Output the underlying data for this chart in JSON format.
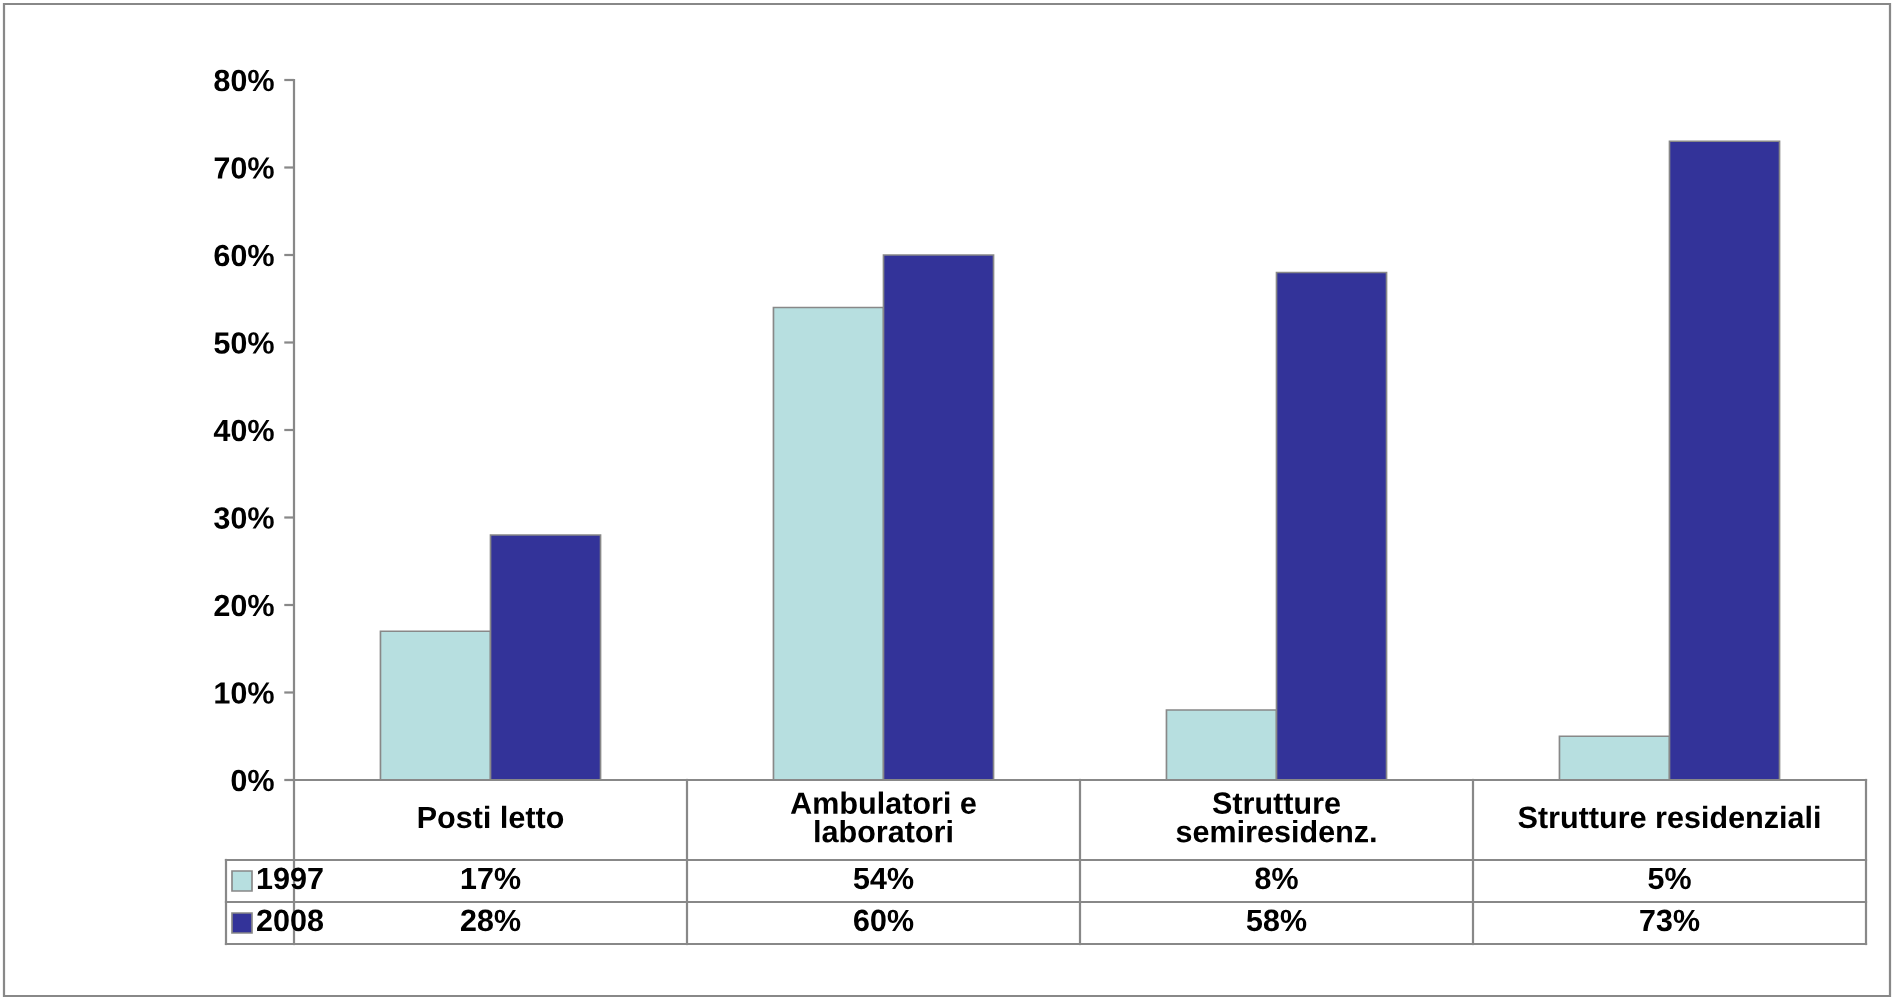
{
  "chart_data": {
    "type": "bar",
    "categories": [
      "Posti letto",
      "Ambulatori e\nlaboratori",
      "Strutture\nsemiresidenz.",
      "Strutture residenziali"
    ],
    "series": [
      {
        "name": "1997",
        "color": "#b7dfe0",
        "values": [
          17,
          54,
          8,
          5
        ],
        "value_labels": [
          "17%",
          "54%",
          "8%",
          "5%"
        ]
      },
      {
        "name": "2008",
        "color": "#333399",
        "values": [
          28,
          60,
          58,
          73
        ],
        "value_labels": [
          "28%",
          "60%",
          "58%",
          "73%"
        ]
      }
    ],
    "ylim": [
      0,
      80
    ],
    "yticks": [
      {
        "value": 0,
        "label": "0%"
      },
      {
        "value": 10,
        "label": "10%"
      },
      {
        "value": 20,
        "label": "20%"
      },
      {
        "value": 30,
        "label": "30%"
      },
      {
        "value": 40,
        "label": "40%"
      },
      {
        "value": 50,
        "label": "50%"
      },
      {
        "value": 60,
        "label": "60%"
      },
      {
        "value": 70,
        "label": "70%"
      },
      {
        "value": 80,
        "label": "80%"
      }
    ],
    "grid": false,
    "legend": "bottom left"
  }
}
